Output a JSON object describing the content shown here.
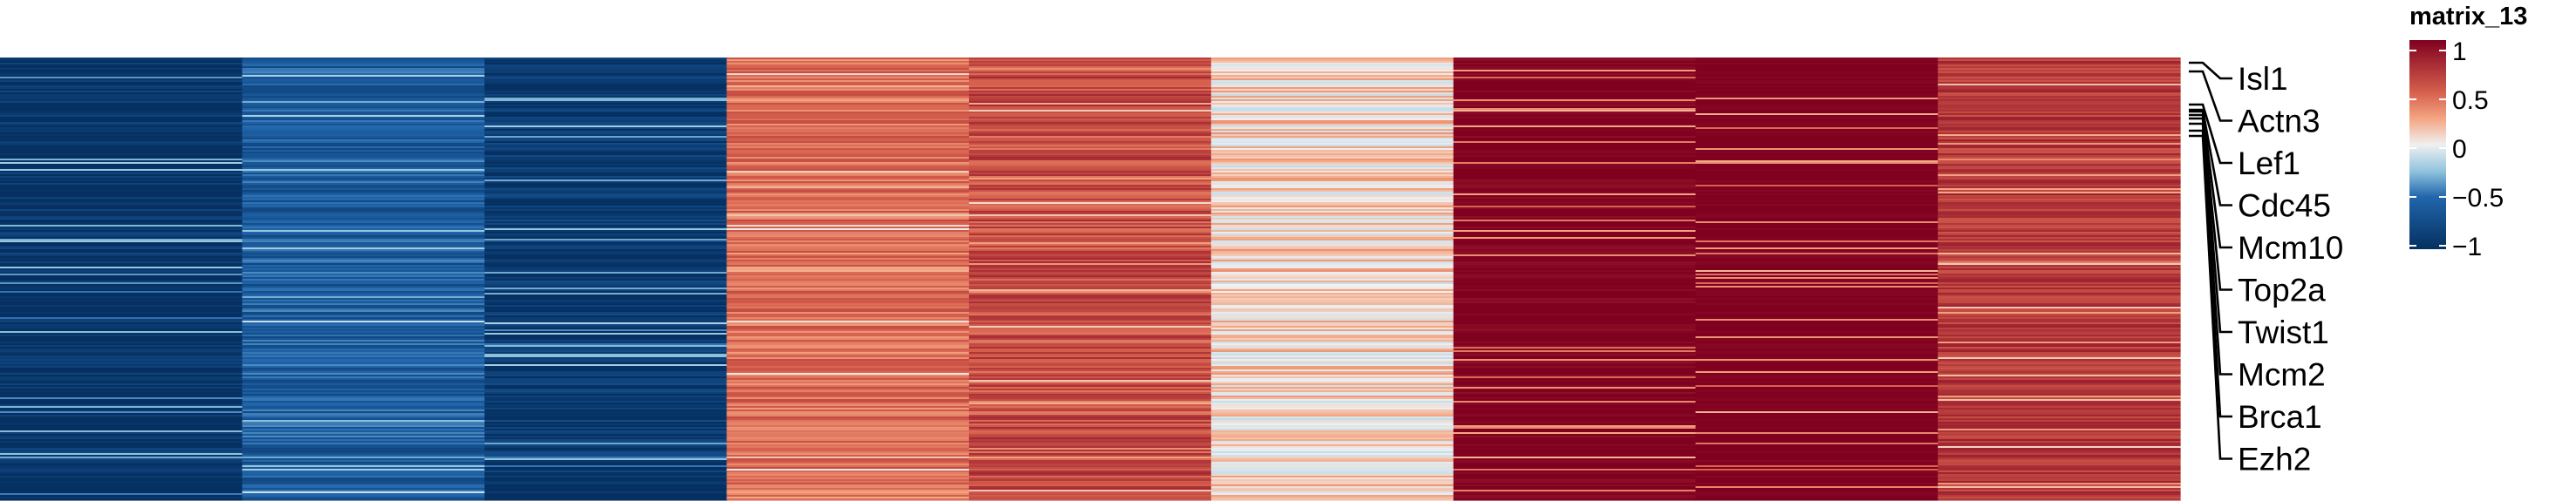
{
  "chart_data": {
    "type": "heatmap",
    "title": "",
    "xlabel": "",
    "ylabel": "",
    "n_columns": 9,
    "column_labels": [],
    "column_means": [
      -0.95,
      -0.6,
      -0.9,
      0.45,
      0.6,
      0.1,
      1.0,
      1.0,
      0.7
    ],
    "column_noise": [
      0.16,
      0.2,
      0.16,
      0.16,
      0.2,
      0.22,
      0.08,
      0.04,
      0.14
    ],
    "highlighted_genes": [
      "Isl1",
      "Actn3",
      "Lef1",
      "Cdc45",
      "Mcm10",
      "Top2a",
      "Twist1",
      "Mcm2",
      "Brca1",
      "Ezh2"
    ],
    "color_scale": {
      "name": "matrix_13",
      "range": [
        -1,
        1
      ],
      "stops": [
        {
          "value": -1,
          "color": "#053061"
        },
        {
          "value": -0.5,
          "color": "#2166ac"
        },
        {
          "value": -0.25,
          "color": "#92c5de"
        },
        {
          "value": 0,
          "color": "#f0f0f0"
        },
        {
          "value": 0.25,
          "color": "#f4a582"
        },
        {
          "value": 0.5,
          "color": "#d6604d"
        },
        {
          "value": 1,
          "color": "#800020"
        }
      ],
      "ticks": [
        1,
        0.5,
        0,
        -0.5,
        -1
      ],
      "tick_labels": [
        "1",
        "0.5",
        "0",
        "−0.5",
        "−1"
      ]
    },
    "legend_position": "top-right",
    "grid": false
  }
}
